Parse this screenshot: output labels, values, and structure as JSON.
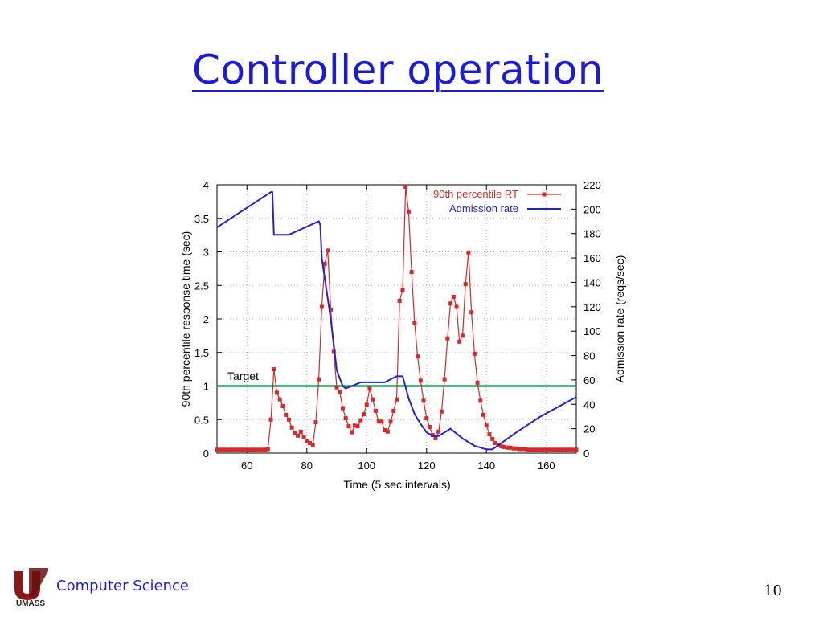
{
  "slide": {
    "title": "Controller operation",
    "footer_logo_text": "UMASS",
    "footer_department": "Computer Science",
    "page_number": "10"
  },
  "chart_data": {
    "type": "line",
    "xlabel": "Time (5 sec intervals)",
    "ylabel": "90th percentile response time (sec)",
    "y2label": "Admission rate (reqs/sec)",
    "xlim": [
      50,
      170
    ],
    "ylim": [
      0,
      4
    ],
    "y2lim": [
      0,
      220
    ],
    "xticks": [
      60,
      80,
      100,
      120,
      140,
      160
    ],
    "yticks": [
      0,
      0.5,
      1,
      1.5,
      2,
      2.5,
      3,
      3.5,
      4
    ],
    "y2ticks": [
      0,
      20,
      40,
      60,
      80,
      100,
      120,
      140,
      160,
      180,
      200,
      220
    ],
    "grid": true,
    "legend_position": "top-right",
    "target": {
      "label": "Target",
      "value": 1,
      "color": "#1a9a5a"
    },
    "series": [
      {
        "name": "90th percentile RT",
        "axis": "left",
        "color": "#d42a2a",
        "marker": "square",
        "x": [
          50,
          51,
          52,
          53,
          54,
          55,
          56,
          57,
          58,
          59,
          60,
          61,
          62,
          63,
          64,
          65,
          66,
          67,
          68,
          69,
          70,
          71,
          72,
          73,
          74,
          75,
          76,
          77,
          78,
          79,
          80,
          81,
          82,
          83,
          84,
          85,
          86,
          87,
          88,
          89,
          90,
          91,
          92,
          93,
          94,
          95,
          96,
          97,
          98,
          99,
          100,
          101,
          102,
          103,
          104,
          105,
          106,
          107,
          108,
          109,
          110,
          111,
          112,
          113,
          114,
          115,
          116,
          117,
          118,
          119,
          120,
          121,
          122,
          123,
          124,
          125,
          126,
          127,
          128,
          129,
          130,
          131,
          132,
          133,
          134,
          135,
          136,
          137,
          138,
          139,
          140,
          141,
          142,
          143,
          144,
          145,
          146,
          147,
          148,
          149,
          150,
          151,
          152,
          153,
          154,
          155,
          156,
          157,
          158,
          159,
          160,
          161,
          162,
          163,
          164,
          165,
          166,
          167,
          168,
          169,
          170
        ],
        "values": [
          0.05,
          0.05,
          0.05,
          0.05,
          0.05,
          0.05,
          0.05,
          0.05,
          0.05,
          0.05,
          0.05,
          0.05,
          0.05,
          0.05,
          0.05,
          0.05,
          0.05,
          0.06,
          0.5,
          1.25,
          0.9,
          0.8,
          0.7,
          0.57,
          0.5,
          0.38,
          0.3,
          0.26,
          0.32,
          0.24,
          0.18,
          0.15,
          0.12,
          0.46,
          1.1,
          2.18,
          2.82,
          3.02,
          2.14,
          1.51,
          0.98,
          0.91,
          0.67,
          0.52,
          0.4,
          0.31,
          0.41,
          0.4,
          0.49,
          0.58,
          0.72,
          0.96,
          0.8,
          0.63,
          0.47,
          0.47,
          0.34,
          0.32,
          0.47,
          0.63,
          0.8,
          2.27,
          2.43,
          3.97,
          3.6,
          2.7,
          1.94,
          1.44,
          1.08,
          0.78,
          0.52,
          0.39,
          0.27,
          0.22,
          0.32,
          0.62,
          1.1,
          1.71,
          2.23,
          2.33,
          2.18,
          1.66,
          1.75,
          2.52,
          2.99,
          2.1,
          1.48,
          1.05,
          0.78,
          0.57,
          0.41,
          0.28,
          0.21,
          0.15,
          0.12,
          0.1,
          0.09,
          0.08,
          0.08,
          0.07,
          0.07,
          0.06,
          0.06,
          0.06,
          0.05,
          0.05,
          0.05,
          0.05,
          0.05,
          0.05,
          0.05,
          0.05,
          0.05,
          0.05,
          0.05,
          0.05,
          0.05,
          0.05,
          0.05,
          0.05,
          0.05
        ]
      },
      {
        "name": "Admission rate",
        "axis": "right",
        "color": "#2222c8",
        "marker": "none",
        "x": [
          50,
          68,
          68.5,
          69,
          74,
          84,
          84.5,
          85,
          88,
          90,
          92,
          93,
          95,
          98,
          100,
          106,
          110,
          112,
          114,
          116,
          118,
          120,
          122,
          124,
          126,
          128,
          132,
          136,
          140,
          142,
          146,
          150,
          158,
          170
        ],
        "values": [
          185,
          214,
          214,
          179,
          179,
          190,
          187,
          160,
          110,
          68,
          55,
          53,
          55,
          58,
          58,
          58,
          63,
          63,
          45,
          32,
          24,
          17,
          14,
          14,
          17,
          20,
          12,
          6,
          3,
          3,
          10,
          17,
          30,
          46
        ]
      }
    ]
  }
}
